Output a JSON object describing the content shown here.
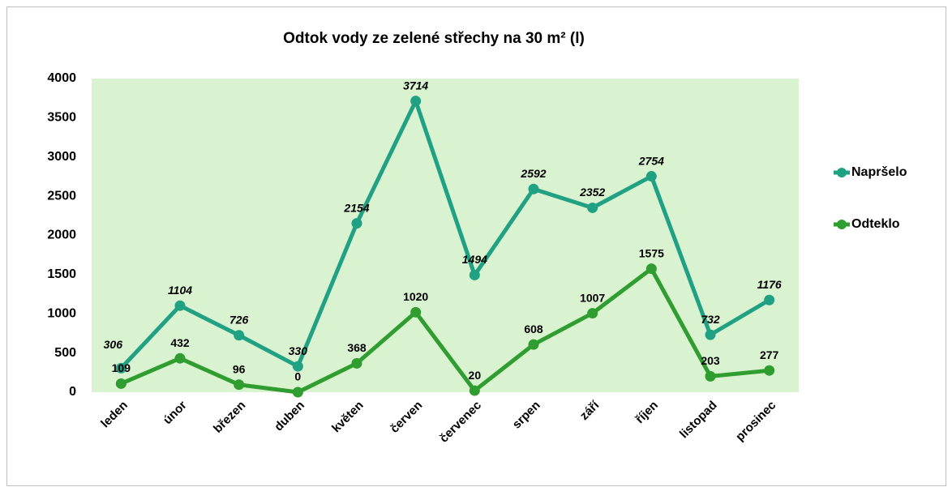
{
  "chart_data": {
    "type": "line",
    "title": "Odtok vody ze zelené střechy na 30 m² (l)",
    "categories": [
      "leden",
      "únor",
      "březen",
      "duben",
      "květen",
      "červen",
      "červenec",
      "srpen",
      "září",
      "říjen",
      "listopad",
      "prosinec"
    ],
    "series": [
      {
        "name": "Napršelo",
        "color": "#21a184",
        "values": [
          306,
          1104,
          726,
          330,
          2154,
          3714,
          1494,
          2592,
          2352,
          2754,
          732,
          1176
        ]
      },
      {
        "name": "Odteklo",
        "color": "#2f9d2f",
        "values": [
          109,
          432,
          96,
          0,
          368,
          1020,
          20,
          608,
          1007,
          1575,
          203,
          277
        ]
      }
    ],
    "ylim": [
      0,
      4000
    ],
    "yticks": [
      0,
      500,
      1000,
      1500,
      2000,
      2500,
      3000,
      3500,
      4000
    ],
    "grid": false,
    "legend": "right"
  }
}
